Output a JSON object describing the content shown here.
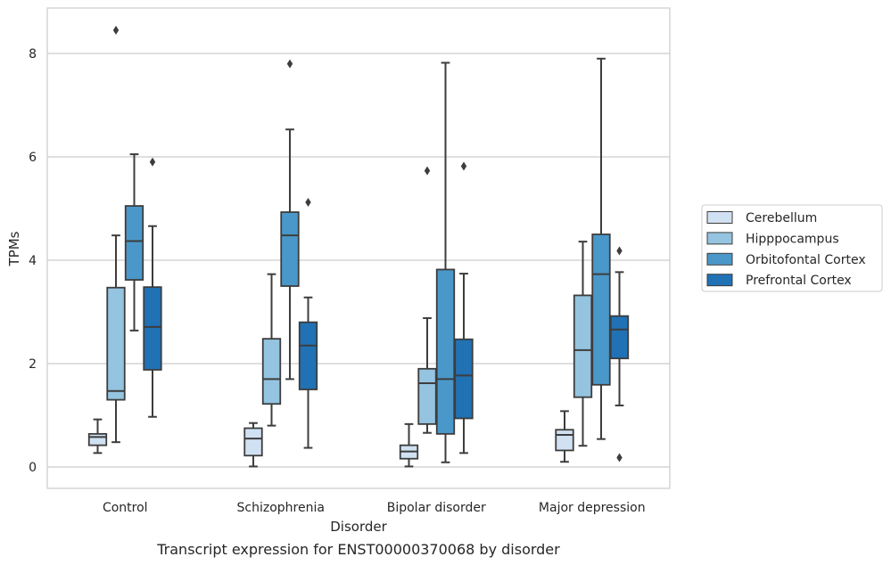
{
  "caption": "Transcript expression for ENST00000370068 by disorder",
  "chart_data": {
    "type": "box",
    "xlabel": "Disorder",
    "ylabel": "TPMs",
    "ylim": [
      -0.4,
      8.9
    ],
    "yticks": [
      0,
      2,
      4,
      6,
      8
    ],
    "grid": "horizontal",
    "legend_position": "right",
    "categories": [
      "Control",
      "Schizophrenia",
      "Bipolar disorder",
      "Major depression"
    ],
    "series": [
      {
        "name": "Cerebellum",
        "color": "#d0e1f2",
        "boxes": [
          {
            "whisker_low": 0.27,
            "q1": 0.42,
            "median": 0.58,
            "q3": 0.64,
            "whisker_high": 0.92,
            "outliers": []
          },
          {
            "whisker_low": 0.01,
            "q1": 0.22,
            "median": 0.55,
            "q3": 0.75,
            "whisker_high": 0.85,
            "outliers": []
          },
          {
            "whisker_low": 0.01,
            "q1": 0.16,
            "median": 0.3,
            "q3": 0.42,
            "whisker_high": 0.83,
            "outliers": []
          },
          {
            "whisker_low": 0.1,
            "q1": 0.32,
            "median": 0.62,
            "q3": 0.72,
            "whisker_high": 1.08,
            "outliers": []
          }
        ]
      },
      {
        "name": "Hipppocampus",
        "color": "#94c4df",
        "boxes": [
          {
            "whisker_low": 0.48,
            "q1": 1.3,
            "median": 1.47,
            "q3": 3.47,
            "whisker_high": 4.48,
            "outliers": [
              8.45
            ]
          },
          {
            "whisker_low": 0.8,
            "q1": 1.22,
            "median": 1.7,
            "q3": 2.48,
            "whisker_high": 3.73,
            "outliers": []
          },
          {
            "whisker_low": 0.66,
            "q1": 0.83,
            "median": 1.62,
            "q3": 1.9,
            "whisker_high": 2.88,
            "outliers": [
              5.73
            ]
          },
          {
            "whisker_low": 0.41,
            "q1": 1.35,
            "median": 2.26,
            "q3": 3.32,
            "whisker_high": 4.36,
            "outliers": []
          }
        ]
      },
      {
        "name": "Orbitofontal Cortex",
        "color": "#4a98c9",
        "boxes": [
          {
            "whisker_low": 2.64,
            "q1": 3.62,
            "median": 4.37,
            "q3": 5.05,
            "whisker_high": 6.05,
            "outliers": []
          },
          {
            "whisker_low": 1.7,
            "q1": 3.5,
            "median": 4.48,
            "q3": 4.93,
            "whisker_high": 6.53,
            "outliers": [
              7.8
            ]
          },
          {
            "whisker_low": 0.09,
            "q1": 0.64,
            "median": 1.7,
            "q3": 3.82,
            "whisker_high": 7.82,
            "outliers": []
          },
          {
            "whisker_low": 0.54,
            "q1": 1.59,
            "median": 3.73,
            "q3": 4.5,
            "whisker_high": 7.9,
            "outliers": []
          }
        ]
      },
      {
        "name": "Prefrontal Cortex",
        "color": "#2171b5",
        "boxes": [
          {
            "whisker_low": 0.97,
            "q1": 1.88,
            "median": 2.71,
            "q3": 3.48,
            "whisker_high": 4.66,
            "outliers": [
              5.9
            ]
          },
          {
            "whisker_low": 0.37,
            "q1": 1.5,
            "median": 2.35,
            "q3": 2.8,
            "whisker_high": 3.28,
            "outliers": [
              5.12
            ]
          },
          {
            "whisker_low": 0.27,
            "q1": 0.94,
            "median": 1.77,
            "q3": 2.47,
            "whisker_high": 3.74,
            "outliers": [
              5.82
            ]
          },
          {
            "whisker_low": 1.19,
            "q1": 2.1,
            "median": 2.66,
            "q3": 2.92,
            "whisker_high": 3.77,
            "outliers": [
              4.18,
              0.18
            ]
          }
        ]
      }
    ]
  }
}
